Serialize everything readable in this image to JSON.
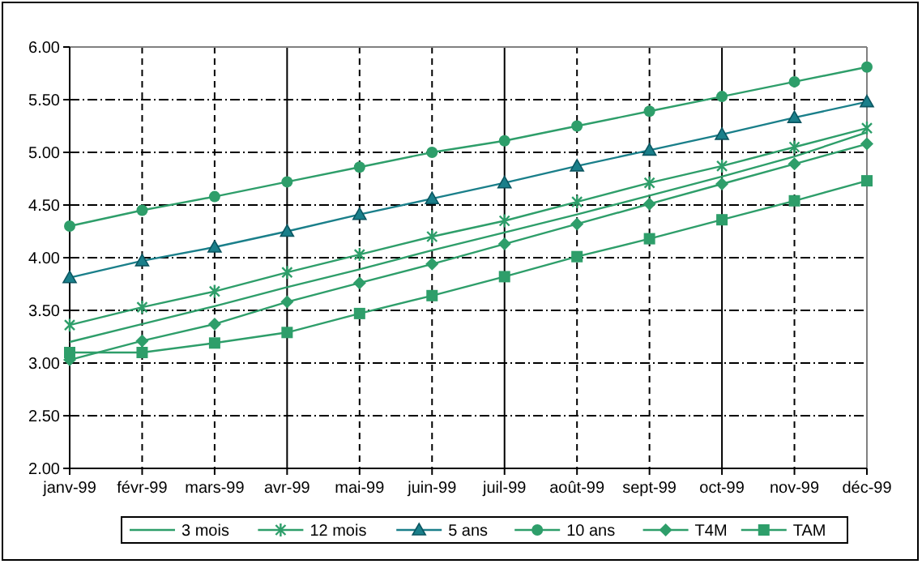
{
  "chart_data": {
    "type": "line",
    "categories": [
      "janv-99",
      "févr-99",
      "mars-99",
      "avr-99",
      "mai-99",
      "juin-99",
      "juil-99",
      "août-99",
      "sept-99",
      "oct-99",
      "nov-99",
      "déc-99"
    ],
    "ylim": [
      2,
      6
    ],
    "yticks": [
      {
        "value": 2,
        "label": "2.00"
      },
      {
        "value": 2.5,
        "label": "2.50"
      },
      {
        "value": 3,
        "label": "3.00"
      },
      {
        "value": 3.5,
        "label": "3.50"
      },
      {
        "value": 4,
        "label": "4.00"
      },
      {
        "value": 4.5,
        "label": "4.50"
      },
      {
        "value": 5,
        "label": "5.00"
      },
      {
        "value": 5.5,
        "label": "5.50"
      },
      {
        "value": 6,
        "label": "6.00"
      }
    ],
    "grid": true,
    "legend": "bottom",
    "series": [
      {
        "name": "3 mois",
        "color": "#2e9e6a",
        "marker": "none",
        "values": [
          3.2,
          3.37,
          3.54,
          3.72,
          3.89,
          4.07,
          4.24,
          4.41,
          4.59,
          4.77,
          4.96,
          5.19
        ]
      },
      {
        "name": "12 mois",
        "color": "#2e9e6a",
        "marker": "cross",
        "values": [
          3.36,
          3.53,
          3.68,
          3.86,
          4.03,
          4.2,
          4.35,
          4.53,
          4.71,
          4.87,
          5.05,
          5.23
        ]
      },
      {
        "name": "5 ans",
        "color": "#1a7f8a",
        "marker": "triangle",
        "values": [
          3.81,
          3.97,
          4.1,
          4.25,
          4.41,
          4.56,
          4.71,
          4.87,
          5.02,
          5.17,
          5.33,
          5.48
        ]
      },
      {
        "name": "10 ans",
        "color": "#2e9e6a",
        "marker": "circle",
        "values": [
          4.3,
          4.45,
          4.58,
          4.72,
          4.86,
          5.0,
          5.11,
          5.25,
          5.39,
          5.53,
          5.67,
          5.81
        ]
      },
      {
        "name": "T4M",
        "color": "#2e9e6a",
        "marker": "diamond",
        "values": [
          3.03,
          3.21,
          3.37,
          3.58,
          3.76,
          3.94,
          4.13,
          4.32,
          4.51,
          4.7,
          4.89,
          5.08
        ]
      },
      {
        "name": "TAM",
        "color": "#2e9e6a",
        "marker": "square",
        "values": [
          3.1,
          3.1,
          3.19,
          3.29,
          3.47,
          3.64,
          3.82,
          4.01,
          4.18,
          4.36,
          4.54,
          4.73
        ]
      }
    ]
  }
}
